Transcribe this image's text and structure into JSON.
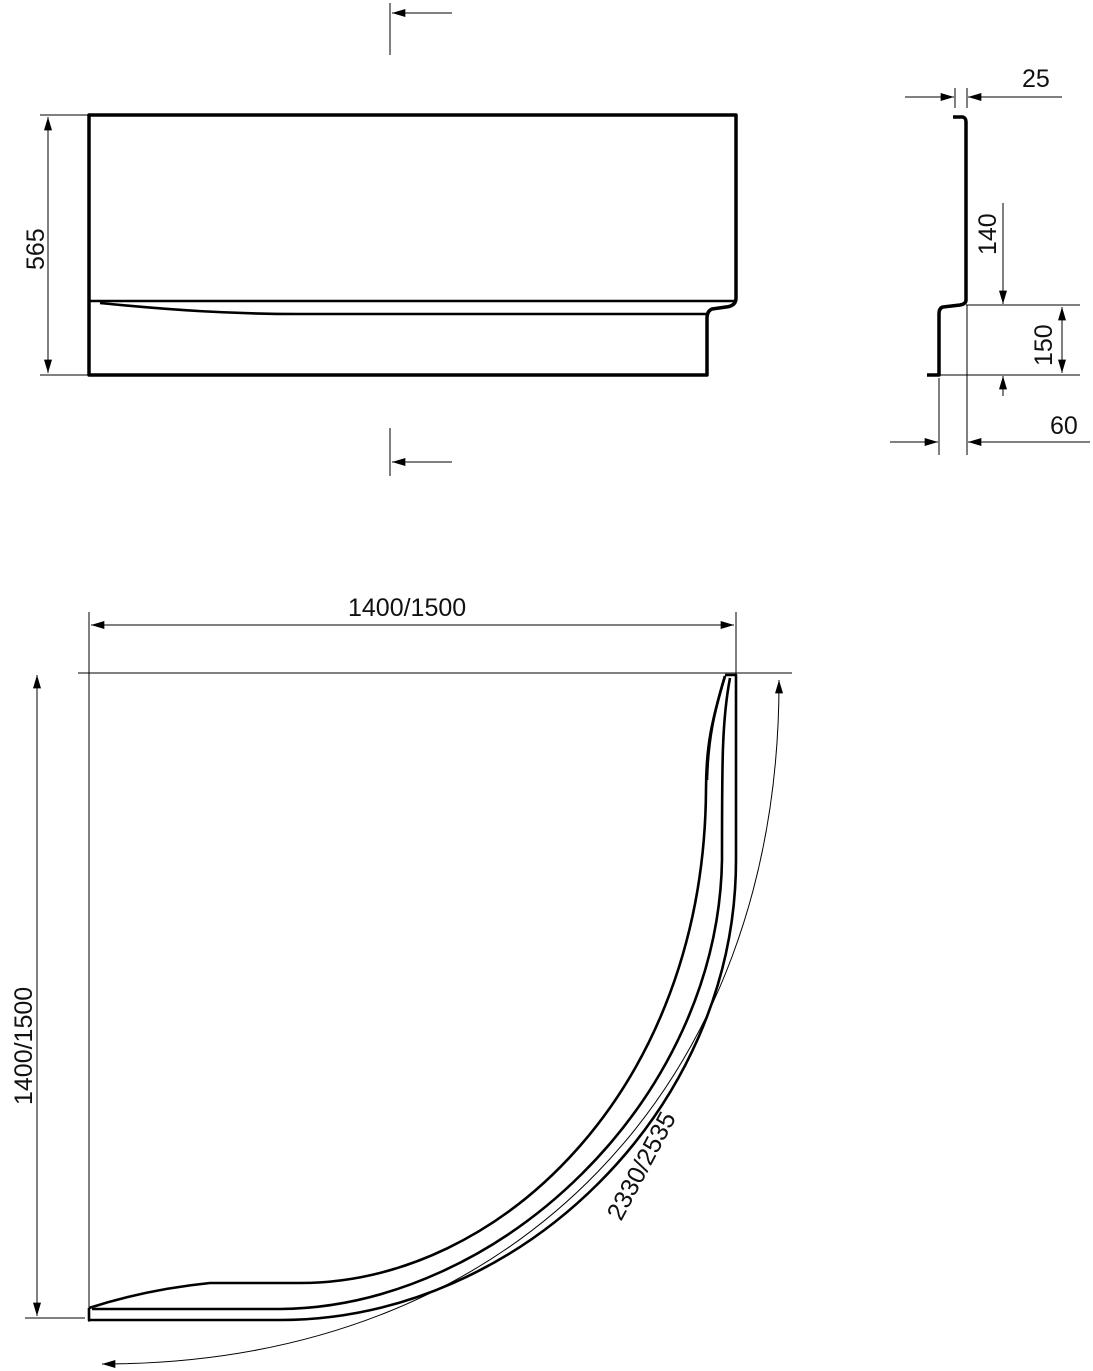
{
  "front_view": {
    "height_label": "565"
  },
  "profile_section": {
    "top_thickness_label": "25",
    "upper_height_label": "140",
    "lower_height_label": "150",
    "bottom_depth_label": "60"
  },
  "plan_view": {
    "width_label": "1400/1500",
    "depth_label": "1400/1500",
    "arc_length_label": "2330/2535"
  },
  "colors": {
    "line": "#000000",
    "background": "#ffffff"
  }
}
